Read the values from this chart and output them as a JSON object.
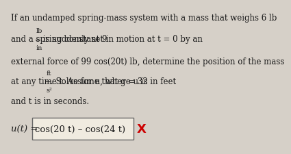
{
  "bg_color": "#d6d0c8",
  "text_color": "#1a1a1a",
  "line1": "If an undamped spring-mass system with a mass that weighs 6 lb",
  "line2_pre": "and a spring constant 9 ",
  "line2_frac_num": "lb",
  "line2_frac_den": "in",
  "line2_post": " is suddenly set in motion at t = 0 by an",
  "line3": "external force of 99 cos(20t) lb, determine the position of the mass",
  "line4_pre": "at any time t. Assume that g = 32 ",
  "line4_frac_num": "ft",
  "line4_frac_den": "s²",
  "line4_post": ". Solve for u, where u is in feet",
  "line5": "and t is in seconds.",
  "answer_label": "u(t) =",
  "answer_box_text": "cos(20 t) – cos(24 t)",
  "answer_x_color": "#cc0000",
  "answer_x_text": "X",
  "box_bg": "#f0ebe0",
  "font_size": 8.5,
  "answer_font_size": 9.5
}
